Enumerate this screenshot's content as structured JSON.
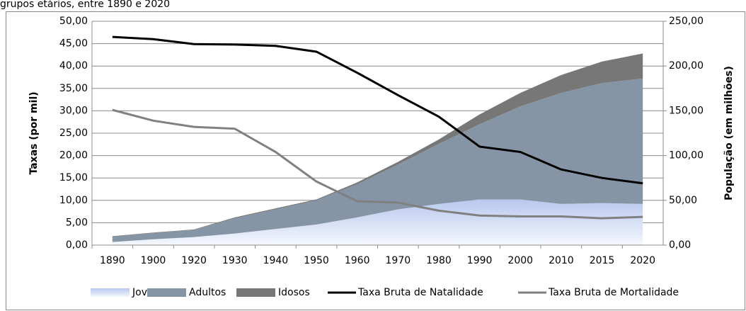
{
  "chart_data": {
    "type": "stacked-area-line",
    "title": "grupos etários, entre 1890 e 2020",
    "y_label": "Taxas (por mil)",
    "y2_label": "População (em milhões)",
    "categories": [
      "1890",
      "1900",
      "1920",
      "1930",
      "1940",
      "1950",
      "1960",
      "1970",
      "1980",
      "1990",
      "2000",
      "2010",
      "2015",
      "2020"
    ],
    "ylim": [
      0,
      50
    ],
    "yticks": [
      {
        "value": 0,
        "label": "0,00"
      },
      {
        "value": 5,
        "label": "5,00"
      },
      {
        "value": 10,
        "label": "10,00"
      },
      {
        "value": 15,
        "label": "15,00"
      },
      {
        "value": 20,
        "label": "20,00"
      },
      {
        "value": 25,
        "label": "25,00"
      },
      {
        "value": 30,
        "label": "30,00"
      },
      {
        "value": 35,
        "label": "35,00"
      },
      {
        "value": 40,
        "label": "40,00"
      },
      {
        "value": 45,
        "label": "45,00"
      },
      {
        "value": 50,
        "label": "50,00"
      }
    ],
    "y2lim": [
      0,
      250
    ],
    "y2ticks": [
      {
        "value": 0,
        "label": "0,00"
      },
      {
        "value": 50,
        "label": "50,00"
      },
      {
        "value": 100,
        "label": "100,00"
      },
      {
        "value": 150,
        "label": "150,00"
      },
      {
        "value": 200,
        "label": "200,00"
      },
      {
        "value": 250,
        "label": "250,00"
      }
    ],
    "grid": true,
    "legend": "bottom",
    "series": [
      {
        "name": "Jovens",
        "type": "area",
        "axis": "y2",
        "color": "#c9d5ef",
        "values": [
          3.5,
          6.5,
          9,
          13,
          18,
          23,
          31,
          40,
          46,
          51,
          51,
          46,
          47,
          46
        ]
      },
      {
        "name": "Adultos",
        "type": "area",
        "axis": "y2",
        "color": "#8595a5",
        "values": [
          6,
          7,
          8,
          17,
          22,
          27,
          37,
          50,
          67,
          84,
          104,
          124,
          134,
          140
        ]
      },
      {
        "name": "Idosos",
        "type": "area",
        "axis": "y2",
        "color": "#777777",
        "values": [
          0.5,
          0.5,
          0.5,
          1,
          1,
          1,
          2,
          3,
          5,
          11,
          15,
          20,
          24,
          28
        ]
      },
      {
        "name": "Taxa Bruta de Natalidade",
        "type": "line",
        "color": "#000000",
        "values": [
          46.5,
          46,
          44.9,
          44.8,
          44.5,
          43.2,
          38.5,
          33.5,
          28.7,
          22,
          20.8,
          16.9,
          15,
          13.8
        ]
      },
      {
        "name": "Taxa Bruta de Mortalidade",
        "type": "line",
        "color": "#808080",
        "values": [
          30.2,
          27.8,
          26.4,
          26,
          20.8,
          14.2,
          9.8,
          9.5,
          7.7,
          6.6,
          6.4,
          6.4,
          6,
          6.3
        ]
      }
    ]
  }
}
